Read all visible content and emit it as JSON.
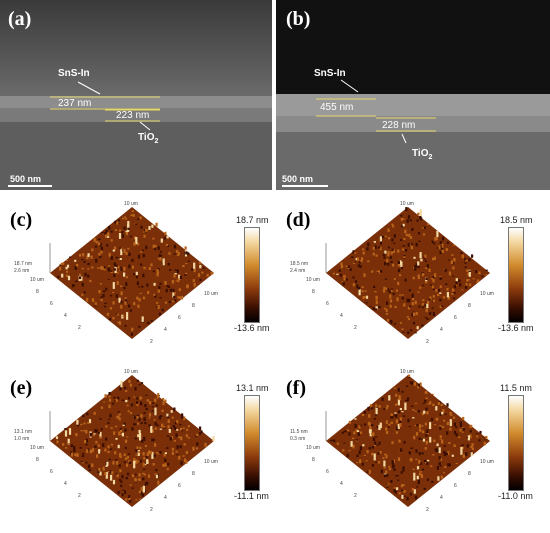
{
  "sem_panels": [
    {
      "label": "(a)",
      "scale_bar": "500 nm",
      "top_layer": "SnS-In",
      "top_thickness": "237 nm",
      "bottom_thickness": "223 nm",
      "bottom_layer": "TiO2",
      "bottom_layer_main": "TiO",
      "bottom_layer_sub": "2",
      "background": "#5a5a5a"
    },
    {
      "label": "(b)",
      "scale_bar": "500 nm",
      "top_layer": "SnS-In",
      "top_thickness": "455 nm",
      "bottom_thickness": "228 nm",
      "bottom_layer": "TiO2",
      "bottom_layer_main": "TiO",
      "bottom_layer_sub": "2",
      "background": "#111111"
    }
  ],
  "afm_panels": [
    {
      "label": "(c)",
      "max": "18.7 nm",
      "min": "-13.6 nm",
      "z_top": "18.7 nm",
      "z_mid": "2.6 nm",
      "axis_top": "10 um",
      "axis_right": "10 um",
      "axis_left": "10 um"
    },
    {
      "label": "(d)",
      "max": "18.5 nm",
      "min": "-13.6 nm",
      "z_top": "18.5 nm",
      "z_mid": "2.4 nm",
      "axis_top": "10 um",
      "axis_right": "10 um",
      "axis_left": "10 um"
    },
    {
      "label": "(e)",
      "max": "13.1 nm",
      "min": "-11.1 nm",
      "z_top": "13.1 nm",
      "z_mid": "1.0 nm",
      "axis_top": "10 um",
      "axis_right": "10 um",
      "axis_left": "10 um"
    },
    {
      "label": "(f)",
      "max": "11.5 nm",
      "min": "-11.0 nm",
      "z_top": "11.5 nm",
      "z_mid": "0.3 nm",
      "axis_top": "10 um",
      "axis_right": "10 um",
      "axis_left": "10 um"
    }
  ],
  "tick_values": [
    "8",
    "6",
    "4",
    "2"
  ],
  "colors": {
    "afm_high": "#f3d7a0",
    "afm_mid": "#b8631a",
    "afm_low": "#3a0e02",
    "measure_line": "#e8d86a"
  }
}
